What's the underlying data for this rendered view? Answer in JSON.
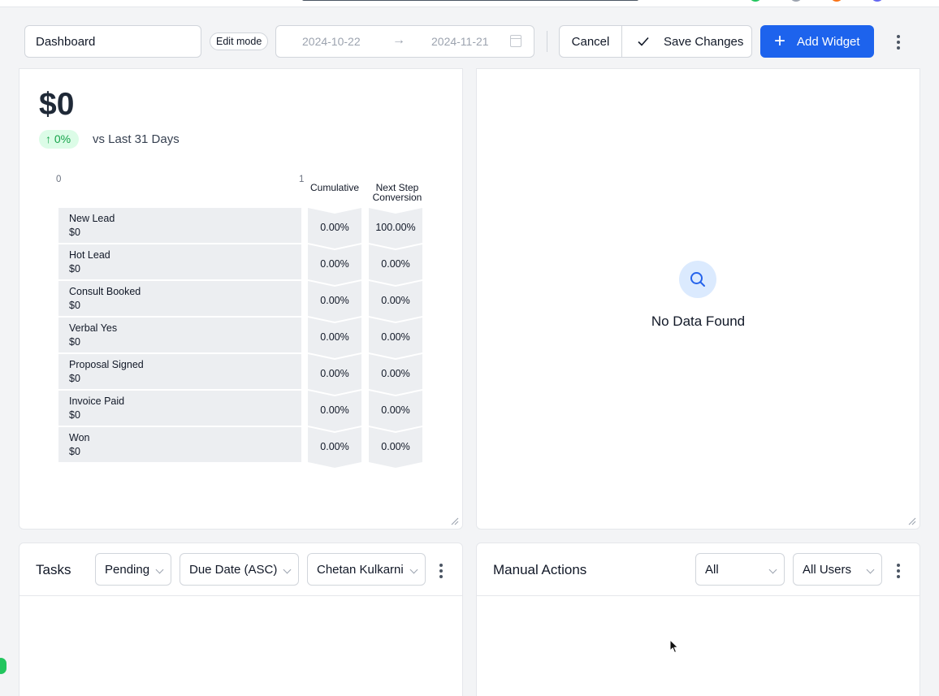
{
  "toolbar": {
    "dashboard_name": "Dashboard",
    "edit_mode_label": "Edit mode",
    "date_start": "2024-10-22",
    "date_end": "2024-11-21",
    "cancel_label": "Cancel",
    "save_label": "Save Changes",
    "add_widget_label": "Add Widget"
  },
  "funnel_widget": {
    "total_value": "$0",
    "change_pct": "0%",
    "comparison_text": "vs Last 31 Days",
    "axis_min": "0",
    "axis_max": "1",
    "col_cumulative": "Cumulative",
    "col_next_step_line1": "Next Step",
    "col_next_step_line2": "Conversion",
    "stages": [
      {
        "name": "New Lead",
        "value": "$0",
        "cumulative": "0.00%",
        "next_step": "100.00%"
      },
      {
        "name": "Hot Lead",
        "value": "$0",
        "cumulative": "0.00%",
        "next_step": "0.00%"
      },
      {
        "name": "Consult Booked",
        "value": "$0",
        "cumulative": "0.00%",
        "next_step": "0.00%"
      },
      {
        "name": "Verbal Yes",
        "value": "$0",
        "cumulative": "0.00%",
        "next_step": "0.00%"
      },
      {
        "name": "Proposal Signed",
        "value": "$0",
        "cumulative": "0.00%",
        "next_step": "0.00%"
      },
      {
        "name": "Invoice Paid",
        "value": "$0",
        "cumulative": "0.00%",
        "next_step": "0.00%"
      },
      {
        "name": "Won",
        "value": "$0",
        "cumulative": "0.00%",
        "next_step": "0.00%"
      }
    ]
  },
  "empty_widget": {
    "message": "No Data Found"
  },
  "tasks_widget": {
    "title": "Tasks",
    "status_filter": "Pending",
    "sort_filter": "Due Date (ASC)",
    "user_filter": "Chetan Kulkarni"
  },
  "manual_actions_widget": {
    "title": "Manual Actions",
    "type_filter": "All",
    "user_filter": "All Users"
  },
  "colors": {
    "primary": "#1d63ed",
    "success_bg": "#dcfce7",
    "success_text": "#16a34a",
    "stage_fill": "#eceef1"
  },
  "icons": {
    "arrow_right": "→",
    "arrow_up": "↑",
    "plus": "+"
  }
}
